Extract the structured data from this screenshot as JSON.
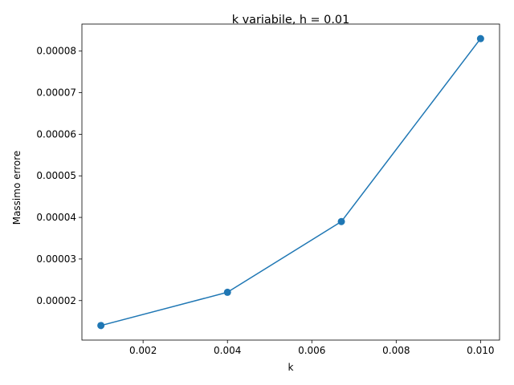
{
  "chart_data": {
    "type": "line",
    "title": "k variabile, h = 0.01",
    "xlabel": "k",
    "ylabel": "Massimo errore",
    "x": [
      0.001,
      0.004,
      0.0067,
      0.01
    ],
    "series": [
      {
        "values": [
          1.4e-05,
          2.2e-05,
          3.9e-05,
          8.3e-05
        ],
        "color": "#1f77b4",
        "marker": "circle"
      }
    ],
    "xlim": [
      0.00055,
      0.01045
    ],
    "ylim": [
      1.05e-05,
      8.65e-05
    ],
    "xticks": [
      "0.002",
      "0.004",
      "0.006",
      "0.008",
      "0.010"
    ],
    "yticks": [
      "0.00002",
      "0.00003",
      "0.00004",
      "0.00005",
      "0.00006",
      "0.00007",
      "0.00008"
    ],
    "grid": false,
    "legend": "none"
  }
}
